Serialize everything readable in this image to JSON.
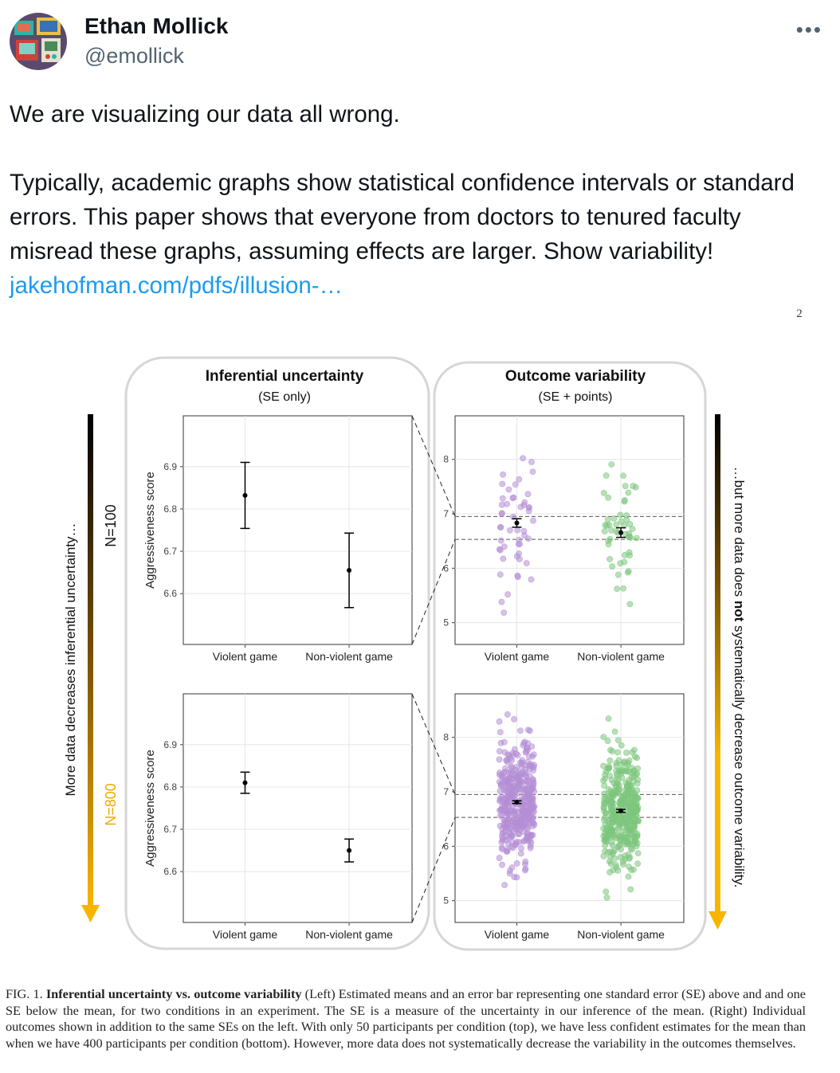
{
  "author": {
    "name": "Ethan Mollick",
    "handle": "@emollick"
  },
  "tweet": {
    "line1": "We are visualizing our data all wrong.",
    "body": "Typically, academic graphs show statistical confidence intervals or standard errors. This paper shows that everyone from doctors to tenured faculty misread these graphs, assuming effects are larger. Show variability!",
    "link_text": "jakehofman.com/pdfs/illusion-…"
  },
  "figure": {
    "page_number": "2",
    "left_title": "Inferential uncertainty",
    "left_subtitle": "(SE only)",
    "right_title": "Outcome variability",
    "right_subtitle": "(SE + points)",
    "left_arrow_text": "More data decreases inferential uncertainty…",
    "right_arrow_pre": "…but more data does ",
    "right_arrow_bold": "not",
    "right_arrow_post": " systematically decrease outcome variability.",
    "n_top": "N=100",
    "n_bottom": "N=800",
    "colors": {
      "violent": "#b48ed6",
      "nonviolent": "#7dc67d",
      "n800": "#f0a800"
    }
  },
  "chart_data": [
    {
      "type": "scatter",
      "panel": "top-left",
      "ylabel": "Aggressiveness score",
      "categories": [
        "Violent game",
        "Non-violent game"
      ],
      "means": [
        6.832,
        6.655
      ],
      "se": [
        0.078,
        0.088
      ],
      "yticks": [
        6.6,
        6.7,
        6.8,
        6.9
      ],
      "ylim": [
        6.48,
        7.02
      ]
    },
    {
      "type": "scatter",
      "panel": "top-right",
      "categories": [
        "Violent game",
        "Non-violent game"
      ],
      "means": [
        6.832,
        6.655
      ],
      "se": [
        0.078,
        0.088
      ],
      "points_per_group": 50,
      "yticks": [
        5,
        6,
        7,
        8
      ],
      "ylim": [
        4.6,
        8.8
      ]
    },
    {
      "type": "scatter",
      "panel": "bottom-left",
      "ylabel": "Aggressiveness score",
      "categories": [
        "Violent game",
        "Non-violent game"
      ],
      "means": [
        6.81,
        6.65
      ],
      "se": [
        0.025,
        0.027
      ],
      "yticks": [
        6.6,
        6.7,
        6.8,
        6.9
      ],
      "ylim": [
        6.48,
        7.02
      ]
    },
    {
      "type": "scatter",
      "panel": "bottom-right",
      "categories": [
        "Violent game",
        "Non-violent game"
      ],
      "means": [
        6.81,
        6.65
      ],
      "se": [
        0.025,
        0.027
      ],
      "points_per_group": 400,
      "yticks": [
        5,
        6,
        7,
        8
      ],
      "ylim": [
        4.6,
        8.8
      ]
    }
  ],
  "caption": {
    "label": "FIG. 1.",
    "title": "Inferential uncertainty vs. outcome variability",
    "text": "(Left) Estimated means and an error bar representing one standard error (SE) above and and one SE below the mean, for two conditions in an experiment. The SE is a measure of the uncertainty in our inference of the mean. (Right) Individual outcomes shown in addition to the same SEs on the left. With only 50 participants per condition (top), we have less confident estimates for the mean than when we have 400 participants per condition (bottom). However, more data does not systematically decrease the variability in the outcomes themselves."
  }
}
